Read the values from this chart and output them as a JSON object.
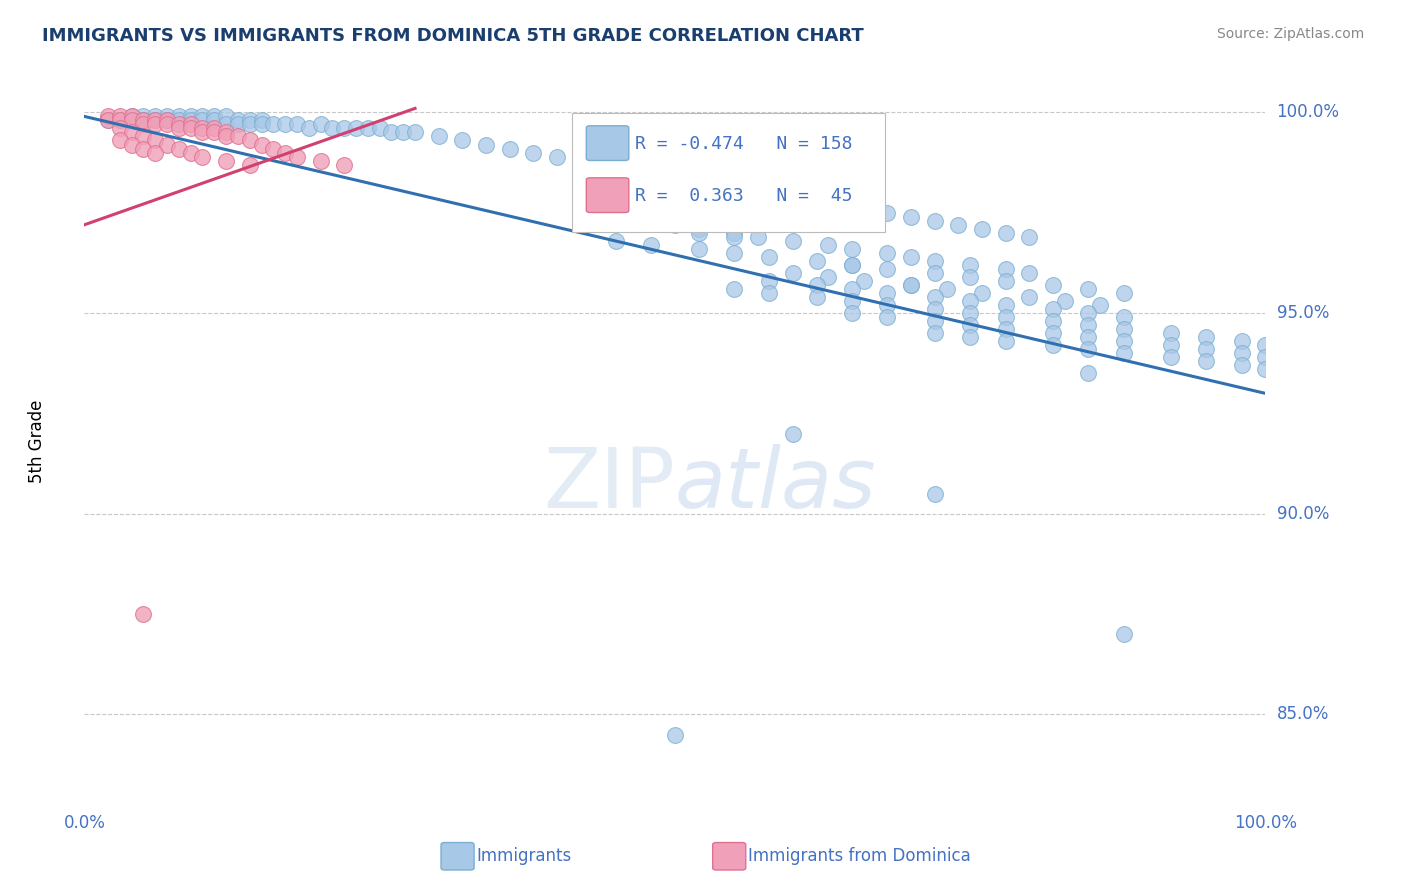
{
  "title": "IMMIGRANTS VS IMMIGRANTS FROM DOMINICA 5TH GRADE CORRELATION CHART",
  "source": "Source: ZipAtlas.com",
  "ylabel": "5th Grade",
  "y_min": 0.828,
  "y_max": 1.008,
  "x_min": 0.0,
  "x_max": 1.0,
  "legend_R1": "-0.474",
  "legend_N1": "158",
  "legend_R2": "0.363",
  "legend_N2": "45",
  "blue_color": "#a8c8e8",
  "blue_edge_color": "#7aaed0",
  "blue_line_color": "#3070b0",
  "pink_color": "#f0a0b8",
  "pink_edge_color": "#e07090",
  "pink_line_color": "#d04070",
  "text_color": "#4472c4",
  "title_color": "#1a3e6e",
  "grid_color": "#c8c8c8",
  "blue_scatter_x": [
    0.02,
    0.03,
    0.04,
    0.05,
    0.05,
    0.06,
    0.06,
    0.07,
    0.07,
    0.08,
    0.08,
    0.09,
    0.09,
    0.1,
    0.1,
    0.11,
    0.11,
    0.12,
    0.12,
    0.13,
    0.13,
    0.14,
    0.14,
    0.15,
    0.15,
    0.16,
    0.17,
    0.18,
    0.19,
    0.2,
    0.21,
    0.22,
    0.23,
    0.24,
    0.25,
    0.26,
    0.27,
    0.28,
    0.3,
    0.32,
    0.34,
    0.36,
    0.38,
    0.4,
    0.42,
    0.44,
    0.46,
    0.48,
    0.5,
    0.52,
    0.54,
    0.56,
    0.58,
    0.6,
    0.62,
    0.64,
    0.66,
    0.68,
    0.7,
    0.72,
    0.74,
    0.76,
    0.78,
    0.8,
    0.5,
    0.52,
    0.55,
    0.57,
    0.6,
    0.63,
    0.65,
    0.68,
    0.7,
    0.72,
    0.75,
    0.78,
    0.8,
    0.45,
    0.48,
    0.52,
    0.55,
    0.58,
    0.62,
    0.65,
    0.68,
    0.72,
    0.75,
    0.78,
    0.82,
    0.85,
    0.88,
    0.6,
    0.63,
    0.66,
    0.7,
    0.73,
    0.76,
    0.8,
    0.83,
    0.86,
    0.58,
    0.62,
    0.65,
    0.68,
    0.72,
    0.75,
    0.78,
    0.82,
    0.85,
    0.88,
    0.55,
    0.58,
    0.62,
    0.65,
    0.68,
    0.72,
    0.75,
    0.78,
    0.82,
    0.85,
    0.88,
    0.92,
    0.95,
    0.98,
    1.0,
    0.65,
    0.68,
    0.72,
    0.75,
    0.78,
    0.82,
    0.85,
    0.88,
    0.92,
    0.95,
    0.98,
    1.0,
    0.72,
    0.75,
    0.78,
    0.82,
    0.85,
    0.88,
    0.92,
    0.95,
    0.98,
    1.0,
    0.52,
    0.55,
    0.65,
    0.7,
    0.48,
    0.85,
    0.6,
    0.72,
    0.88,
    0.5
  ],
  "blue_scatter_y": [
    0.998,
    0.998,
    0.999,
    0.999,
    0.998,
    0.999,
    0.998,
    0.999,
    0.998,
    0.999,
    0.998,
    0.999,
    0.998,
    0.999,
    0.998,
    0.999,
    0.998,
    0.999,
    0.997,
    0.998,
    0.997,
    0.998,
    0.997,
    0.998,
    0.997,
    0.997,
    0.997,
    0.997,
    0.996,
    0.997,
    0.996,
    0.996,
    0.996,
    0.996,
    0.996,
    0.995,
    0.995,
    0.995,
    0.994,
    0.993,
    0.992,
    0.991,
    0.99,
    0.989,
    0.988,
    0.987,
    0.986,
    0.985,
    0.984,
    0.983,
    0.982,
    0.981,
    0.98,
    0.979,
    0.978,
    0.977,
    0.976,
    0.975,
    0.974,
    0.973,
    0.972,
    0.971,
    0.97,
    0.969,
    0.972,
    0.971,
    0.97,
    0.969,
    0.968,
    0.967,
    0.966,
    0.965,
    0.964,
    0.963,
    0.962,
    0.961,
    0.96,
    0.968,
    0.967,
    0.966,
    0.965,
    0.964,
    0.963,
    0.962,
    0.961,
    0.96,
    0.959,
    0.958,
    0.957,
    0.956,
    0.955,
    0.96,
    0.959,
    0.958,
    0.957,
    0.956,
    0.955,
    0.954,
    0.953,
    0.952,
    0.958,
    0.957,
    0.956,
    0.955,
    0.954,
    0.953,
    0.952,
    0.951,
    0.95,
    0.949,
    0.956,
    0.955,
    0.954,
    0.953,
    0.952,
    0.951,
    0.95,
    0.949,
    0.948,
    0.947,
    0.946,
    0.945,
    0.944,
    0.943,
    0.942,
    0.95,
    0.949,
    0.948,
    0.947,
    0.946,
    0.945,
    0.944,
    0.943,
    0.942,
    0.941,
    0.94,
    0.939,
    0.945,
    0.944,
    0.943,
    0.942,
    0.941,
    0.94,
    0.939,
    0.938,
    0.937,
    0.936,
    0.97,
    0.969,
    0.962,
    0.957,
    0.975,
    0.935,
    0.92,
    0.905,
    0.87,
    0.845
  ],
  "pink_scatter_x": [
    0.02,
    0.02,
    0.03,
    0.03,
    0.04,
    0.04,
    0.05,
    0.05,
    0.06,
    0.06,
    0.07,
    0.07,
    0.08,
    0.08,
    0.09,
    0.09,
    0.1,
    0.1,
    0.11,
    0.11,
    0.12,
    0.12,
    0.13,
    0.14,
    0.15,
    0.16,
    0.17,
    0.18,
    0.2,
    0.22,
    0.03,
    0.04,
    0.05,
    0.06,
    0.07,
    0.08,
    0.09,
    0.1,
    0.12,
    0.14,
    0.03,
    0.04,
    0.05,
    0.06,
    0.05
  ],
  "pink_scatter_y": [
    0.999,
    0.998,
    0.999,
    0.998,
    0.999,
    0.998,
    0.998,
    0.997,
    0.998,
    0.997,
    0.998,
    0.997,
    0.997,
    0.996,
    0.997,
    0.996,
    0.996,
    0.995,
    0.996,
    0.995,
    0.995,
    0.994,
    0.994,
    0.993,
    0.992,
    0.991,
    0.99,
    0.989,
    0.988,
    0.987,
    0.996,
    0.995,
    0.994,
    0.993,
    0.992,
    0.991,
    0.99,
    0.989,
    0.988,
    0.987,
    0.993,
    0.992,
    0.991,
    0.99,
    0.875
  ],
  "blue_line_x": [
    0.0,
    1.0
  ],
  "blue_line_y": [
    0.999,
    0.93
  ],
  "pink_line_x": [
    0.0,
    0.28
  ],
  "pink_line_y": [
    0.972,
    1.001
  ]
}
